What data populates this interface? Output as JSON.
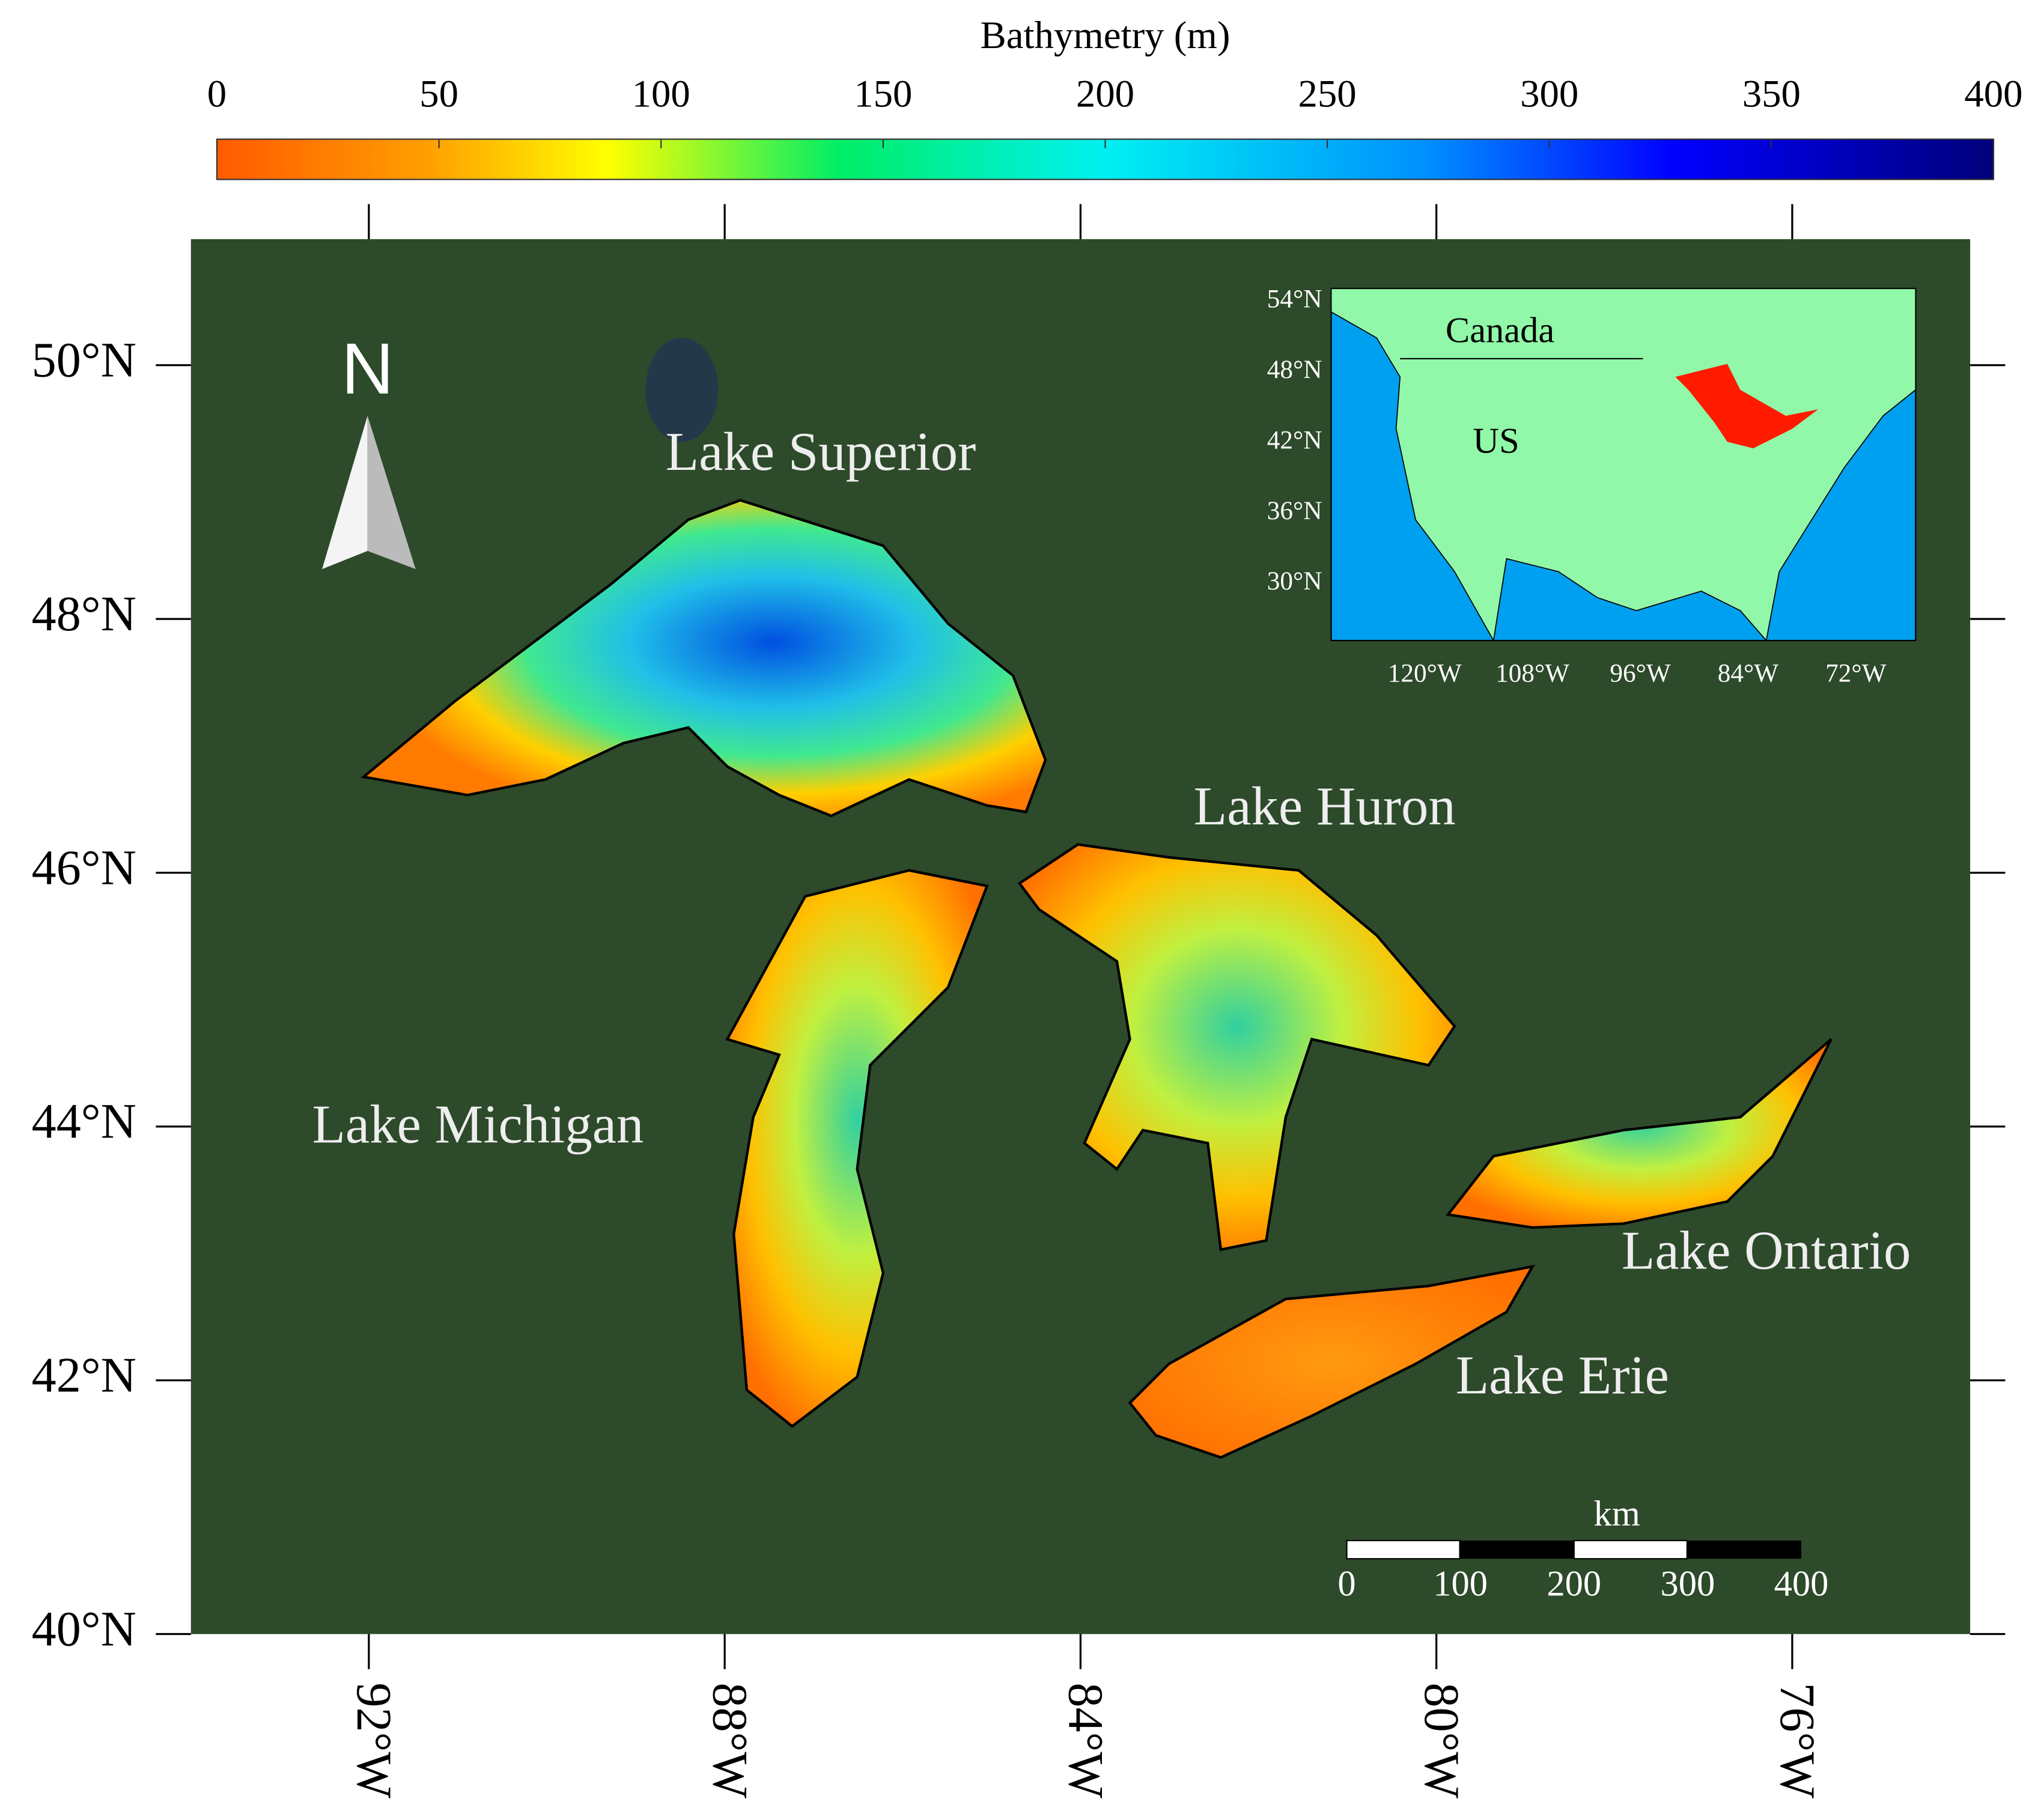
{
  "colorbar": {
    "title": "Bathymetry (m)",
    "ticks": [
      0,
      50,
      100,
      150,
      200,
      250,
      300,
      350,
      400
    ]
  },
  "map": {
    "lat_labels": [
      "50°N",
      "48°N",
      "46°N",
      "44°N",
      "42°N",
      "40°N"
    ],
    "lon_labels": [
      "92°W",
      "88°W",
      "84°W",
      "80°W",
      "76°W"
    ],
    "north": "N",
    "lakes": [
      "Lake Superior",
      "Lake Huron",
      "Lake Michigan",
      "Lake Ontario",
      "Lake Erie"
    ],
    "scale_bar": {
      "unit": "km",
      "ticks": [
        0,
        100,
        200,
        300,
        400
      ]
    }
  },
  "inset": {
    "lat_labels": [
      "54°N",
      "48°N",
      "42°N",
      "36°N",
      "30°N"
    ],
    "lon_labels": [
      "120°W",
      "108°W",
      "96°W",
      "84°W",
      "72°W"
    ],
    "countries": [
      "Canada",
      "US"
    ]
  }
}
